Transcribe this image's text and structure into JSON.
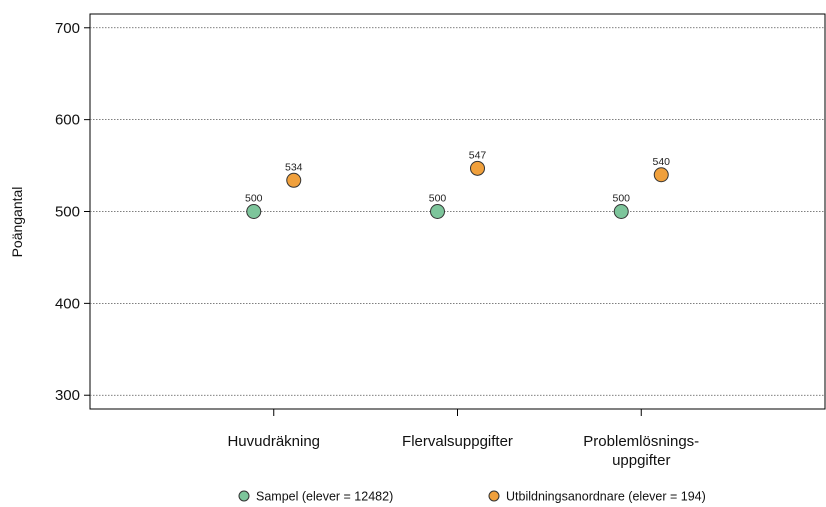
{
  "chart_data": {
    "type": "scatter",
    "title": "",
    "xlabel": "",
    "ylabel": "Poängantal",
    "categories": [
      [
        "Huvudräkning"
      ],
      [
        "Flervalsuppgifter"
      ],
      [
        "Problemlösnings-",
        "uppgifter"
      ]
    ],
    "ylim": [
      285,
      715
    ],
    "yticks": [
      300,
      400,
      500,
      600,
      700
    ],
    "grid": true,
    "legend_position": "bottom",
    "series": [
      {
        "name": "Sampel (elever = 12482)",
        "color": "#7dc59b",
        "values": [
          500,
          500,
          500
        ],
        "labels": [
          "500",
          "500",
          "500"
        ]
      },
      {
        "name": "Utbildningsanordnare (elever = 194)",
        "color": "#f0a03c",
        "values": [
          534,
          547,
          540
        ],
        "labels": [
          "534",
          "547",
          "540"
        ]
      }
    ]
  }
}
